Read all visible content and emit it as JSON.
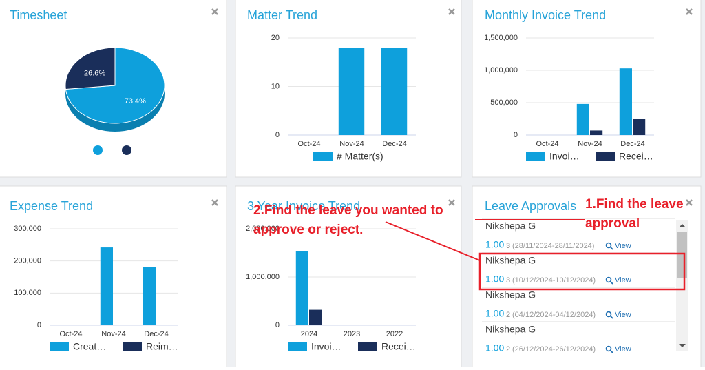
{
  "chart_data": [
    {
      "type": "pie",
      "title": "Timesheet",
      "values": [
        73.4,
        26.6
      ],
      "value_labels": [
        "73.4%",
        "26.6%"
      ],
      "colors": [
        "#0ea0dc",
        "#1a2e5a"
      ]
    },
    {
      "type": "bar",
      "title": "Matter Trend",
      "categories": [
        "Oct-24",
        "Nov-24",
        "Dec-24"
      ],
      "series": [
        {
          "name": "# Matter(s)",
          "color": "#0ea0dc",
          "values": [
            0,
            18,
            18
          ]
        }
      ],
      "ylim": [
        0,
        20
      ],
      "yticks": [
        0,
        10,
        20
      ],
      "grid": true
    },
    {
      "type": "bar",
      "title": "Monthly Invoice Trend",
      "categories": [
        "Oct-24",
        "Nov-24",
        "Dec-24"
      ],
      "series": [
        {
          "name": "Invoi…",
          "color": "#0ea0dc",
          "values": [
            0,
            480000,
            1030000
          ]
        },
        {
          "name": "Recei…",
          "color": "#1a2e5a",
          "values": [
            0,
            70000,
            250000
          ]
        }
      ],
      "ylim": [
        0,
        1500000
      ],
      "yticks": [
        0,
        {
          "value": 500000,
          "label": "500,000"
        },
        {
          "value": 1000000,
          "label": "1,000,000"
        },
        {
          "value": 1500000,
          "label": "1,500,000"
        }
      ],
      "grid": true
    },
    {
      "type": "bar",
      "title": "Expense Trend",
      "categories": [
        "Oct-24",
        "Nov-24",
        "Dec-24"
      ],
      "series": [
        {
          "name": "Creat…",
          "color": "#0ea0dc",
          "values": [
            0,
            242000,
            182000
          ]
        },
        {
          "name": "Reim…",
          "color": "#1a2e5a",
          "values": [
            0,
            0,
            0
          ]
        }
      ],
      "ylim": [
        0,
        300000
      ],
      "yticks": [
        0,
        {
          "value": 100000,
          "label": "100,000"
        },
        {
          "value": 200000,
          "label": "200,000"
        },
        {
          "value": 300000,
          "label": "300,000"
        }
      ],
      "grid": true
    },
    {
      "type": "bar",
      "title": "3 Year Invoice Trend",
      "categories": [
        "2024",
        "2023",
        "2022"
      ],
      "series": [
        {
          "name": "Invoi…",
          "color": "#0ea0dc",
          "values": [
            1530000,
            0,
            0
          ]
        },
        {
          "name": "Recei…",
          "color": "#1a2e5a",
          "values": [
            320000,
            0,
            0
          ]
        }
      ],
      "ylim": [
        0,
        2000000
      ],
      "yticks": [
        0,
        {
          "value": 1000000,
          "label": "1,000,000"
        },
        {
          "value": 2000000,
          "label": "2,000,000"
        }
      ],
      "grid": true
    }
  ],
  "leave_approvals": {
    "title": "Leave Approvals",
    "items": [
      {
        "name": "Nikshepa G",
        "days": "1.00",
        "count": "3",
        "dates": "(28/11/2024-28/11/2024)",
        "action": "View"
      },
      {
        "name": "Nikshepa G",
        "days": "1.00",
        "count": "3",
        "dates": "(10/12/2024-10/12/2024)",
        "action": "View"
      },
      {
        "name": "Nikshepa G",
        "days": "1.00",
        "count": "2",
        "dates": "(04/12/2024-04/12/2024)",
        "action": "View"
      },
      {
        "name": "Nikshepa G",
        "days": "1.00",
        "count": "2",
        "dates": "(26/12/2024-26/12/2024)",
        "action": "View"
      }
    ]
  },
  "annotations": [
    {
      "lines": [
        "1.Find the leave",
        "approval"
      ]
    },
    {
      "lines": [
        "2.Find the leave you wanted to",
        "approve or reject."
      ]
    }
  ]
}
